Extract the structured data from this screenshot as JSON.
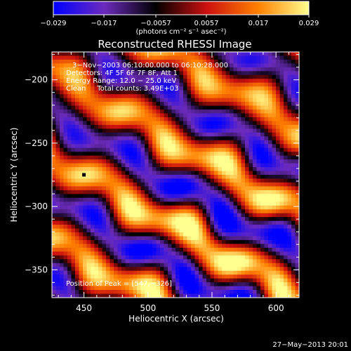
{
  "chart_data": {
    "type": "heatmap",
    "title": "Reconstructed RHESSI Image",
    "xlabel": "Heliocentric X (arcsec)",
    "ylabel": "Heliocentric Y (arcsec)",
    "xlim": [
      425,
      618
    ],
    "ylim": [
      -372,
      -178
    ],
    "x_ticks": [
      450,
      500,
      550,
      600
    ],
    "y_ticks": [
      -200,
      -250,
      -300,
      -350
    ],
    "colorbar": {
      "label": "(photons cm⁻² s⁻¹ asec⁻²)",
      "range": [
        -0.029,
        0.029
      ],
      "ticks": [
        "−0.029",
        "−0.017",
        "−0.0057",
        "0.0057",
        "0.017",
        "0.029"
      ],
      "colormap": [
        "#0000ff",
        "#6c2bbd",
        "#000000",
        "#cc1010",
        "#ff8000",
        "#ffff90"
      ]
    },
    "info_lines": [
      "3−Nov−2003 06:10:00.000 to 06:10:28.000",
      "Detectors: 4F 5F 6F 7F 8F, Att 1",
      "Energy Range: 12.0 − 25.0 keV",
      "Clean     Total counts: 3.49E+03"
    ],
    "peak": {
      "label": "Position of Peak = [547,−326]",
      "x": 547,
      "y": -326
    },
    "marker": {
      "x": 450,
      "y": -275
    },
    "image_grid": {
      "nx": 64,
      "ny": 64,
      "stripe_tilt_deg": 60,
      "period_arcsec": 58
    },
    "footer_date": "27−May−2013 20:01"
  }
}
